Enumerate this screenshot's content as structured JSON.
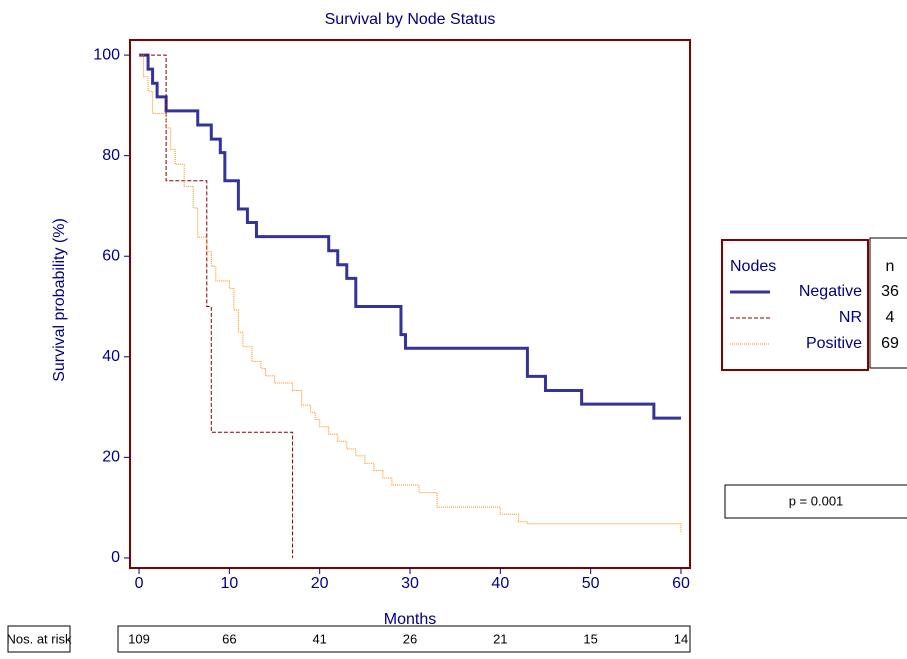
{
  "chart_data": {
    "type": "step",
    "title": "Survival by Node Status",
    "x_label": "Months",
    "y_label": "Survival probability (%)",
    "xlim": [
      -1,
      61
    ],
    "ylim": [
      -2,
      103
    ],
    "xticks": [
      0,
      10,
      20,
      30,
      40,
      50,
      60
    ],
    "yticks": [
      0,
      20,
      40,
      60,
      80,
      100
    ],
    "legend_title": "Nodes",
    "n_header": "n",
    "series": [
      {
        "name": "Negative",
        "color": "#333399",
        "n": 36,
        "x": [
          0,
          1,
          1.5,
          2,
          3,
          6.5,
          8,
          9,
          9.5,
          11,
          12,
          13,
          21,
          22,
          23,
          24,
          29,
          29.5,
          43,
          45,
          49,
          57,
          60
        ],
        "values": [
          100,
          97.2,
          94.4,
          91.7,
          88.9,
          86.1,
          83.3,
          80.6,
          75,
          69.4,
          66.7,
          63.9,
          61.1,
          58.3,
          55.6,
          50,
          44.4,
          41.7,
          36.1,
          33.3,
          30.6,
          27.8,
          27.8
        ]
      },
      {
        "name": "NR",
        "color": "#800000",
        "n": 4,
        "x": [
          0,
          3,
          7.5,
          8,
          17
        ],
        "values": [
          100,
          75,
          50,
          25,
          0
        ]
      },
      {
        "name": "Positive",
        "color": "#ff8c00",
        "n": 69,
        "x": [
          0,
          0.5,
          1,
          1.5,
          3,
          3.5,
          4,
          5,
          6,
          6.5,
          7.5,
          8,
          8.5,
          10,
          10.5,
          11,
          11.5,
          12.5,
          13.5,
          14,
          15,
          17,
          18,
          19,
          19.5,
          20,
          21,
          22,
          23,
          24,
          25,
          26,
          27,
          28,
          31,
          33,
          40,
          42,
          43,
          60
        ],
        "values": [
          100,
          95.7,
          92.8,
          88.4,
          85.5,
          81.2,
          78.3,
          73.9,
          69.6,
          63.8,
          60.9,
          58,
          55.1,
          53.6,
          49.3,
          44.9,
          42,
          39.1,
          37.7,
          36.2,
          34.8,
          33.3,
          30.4,
          29,
          27.5,
          26.1,
          24.6,
          23.2,
          21.7,
          20.3,
          18.8,
          17.4,
          15.9,
          14.5,
          13,
          10.1,
          8.7,
          7.2,
          6.8,
          5
        ]
      }
    ],
    "annotation": "p = 0.001",
    "at_risk": {
      "label": "Nos. at risk",
      "values": [
        109,
        66,
        41,
        26,
        21,
        15,
        14
      ]
    }
  }
}
